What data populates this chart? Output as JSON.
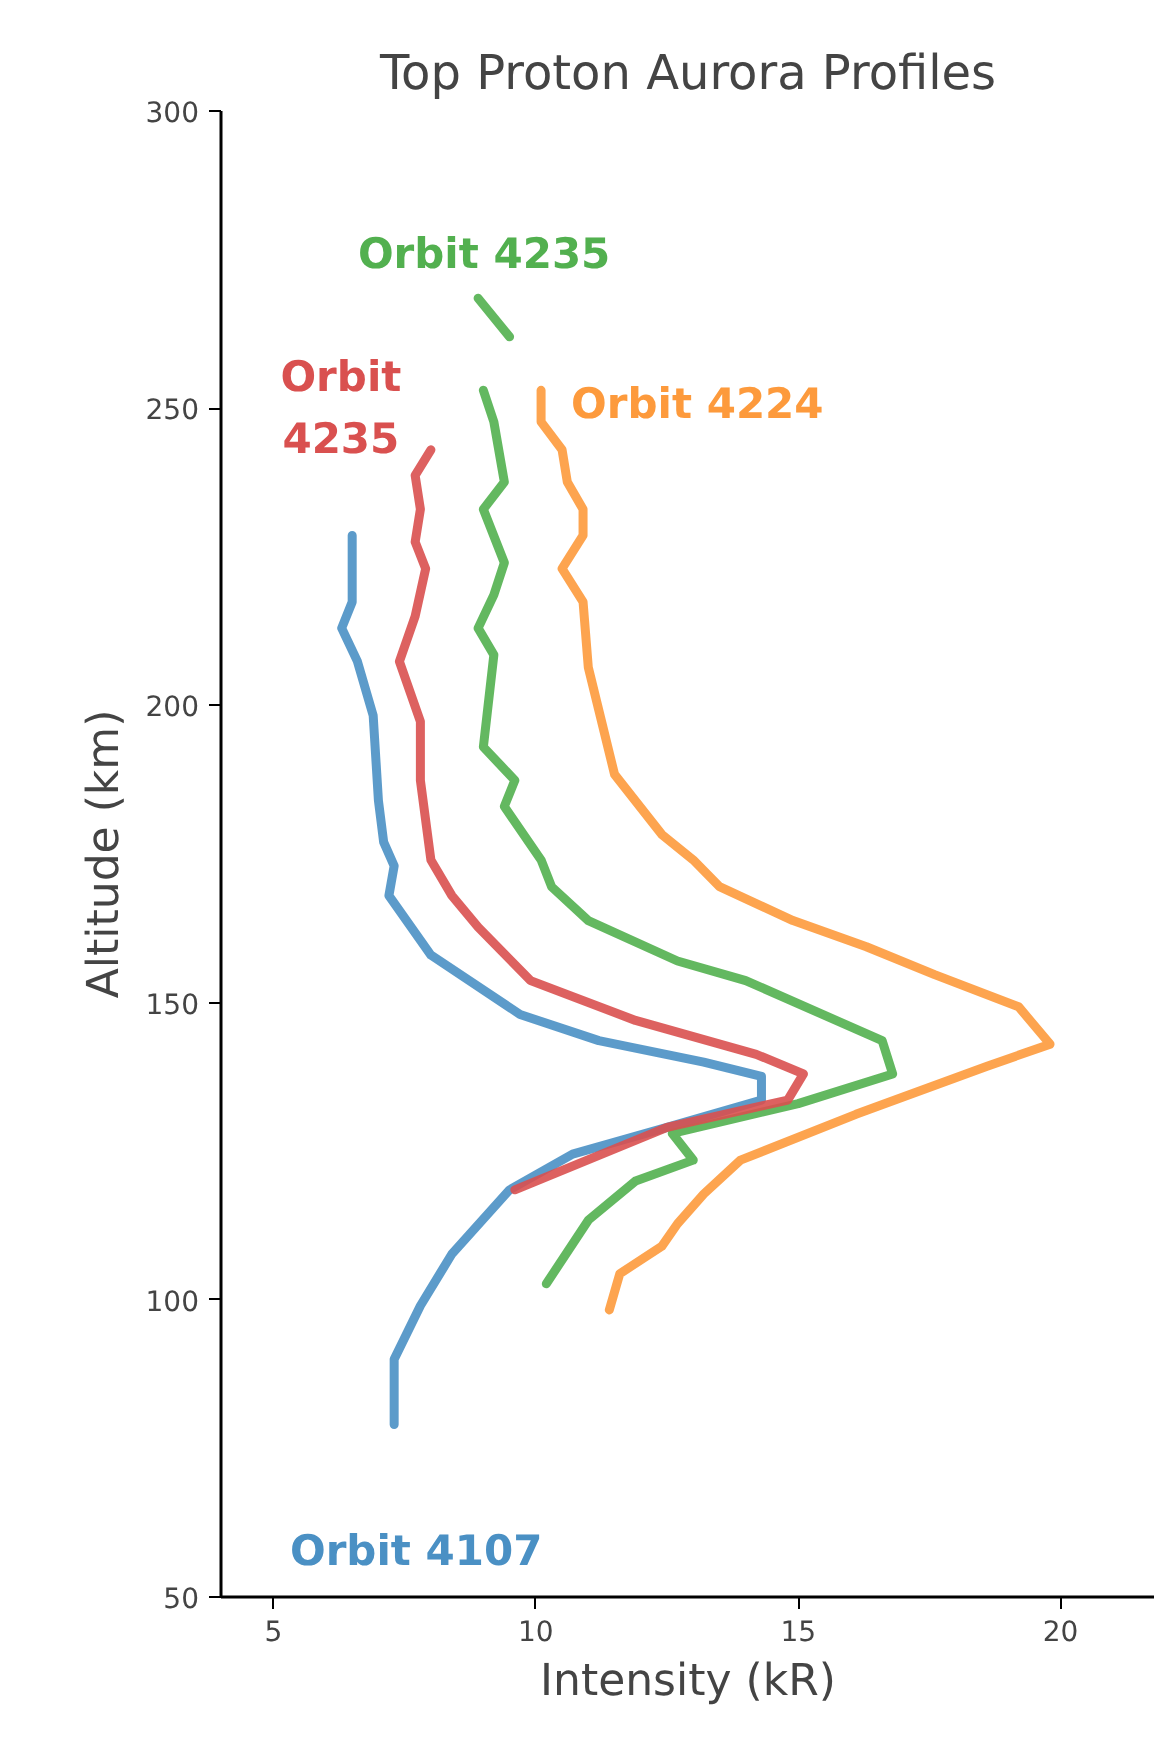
{
  "chart_data": {
    "type": "line",
    "title": "Top Proton Aurora Profiles",
    "xlabel": "Intensity (kR)",
    "ylabel": "Altitude (km)",
    "xlim": [
      4,
      21.8
    ],
    "ylim": [
      50,
      300
    ],
    "xticks": [
      5,
      10,
      15,
      20
    ],
    "yticks": [
      50,
      100,
      150,
      200,
      250,
      300
    ],
    "grid": false,
    "marker": "none",
    "line_style": "solid",
    "series": [
      {
        "name": "Orbit 4107",
        "color": "#4a90c4",
        "x": [
          6.5,
          6.5,
          6.3,
          6.6,
          6.9,
          7.0,
          7.1,
          7.3,
          7.2,
          8.0,
          9.7,
          11.2,
          13.2,
          14.3,
          14.3,
          12.5,
          10.7,
          9.5,
          8.4,
          7.8,
          7.3,
          7.3
        ],
        "values": [
          228.6,
          217.4,
          213,
          207.4,
          198.3,
          184,
          177,
          173,
          168,
          158,
          148,
          143.6,
          140,
          137.6,
          133.6,
          129,
          124.5,
          118.5,
          107.7,
          99,
          90,
          79
        ]
      },
      {
        "name": "Orbit 4224",
        "color": "#fd9a3c",
        "x": [
          10.1,
          10.1,
          10.5,
          10.6,
          10.9,
          10.9,
          10.5,
          10.9,
          11.0,
          11.5,
          12.4,
          13.0,
          13.5,
          14.9,
          16.3,
          17.6,
          19.2,
          19.8,
          18.6,
          16.1,
          13.9,
          13.2,
          12.7,
          12.4,
          11.6,
          11.4
        ],
        "values": [
          253,
          247.7,
          243,
          237.6,
          233,
          228.6,
          223,
          217.4,
          206.4,
          188.4,
          178.3,
          174,
          169.5,
          163.8,
          159.4,
          154.7,
          149.3,
          143,
          139.3,
          131.2,
          123.5,
          117.8,
          112.8,
          109,
          104.4,
          98.3
        ]
      },
      {
        "name": "Orbit 4235",
        "color": "#52b04f",
        "x": [
          8.9,
          9.5,
          null,
          9.0,
          9.2,
          9.4,
          9.0,
          9.4,
          9.2,
          8.9,
          9.2,
          9.0,
          9.6,
          9.4,
          10.1,
          10.3,
          11.0,
          12.7,
          14.0,
          16.6,
          16.8,
          15.0,
          12.6,
          13.0,
          11.9,
          11.0,
          10.2
        ],
        "values": [
          268.5,
          262,
          null,
          253,
          247.7,
          237.6,
          233,
          224,
          218.6,
          213,
          208.5,
          193,
          187.4,
          183,
          174,
          169.5,
          163.8,
          157,
          153.7,
          143.6,
          138,
          133,
          128,
          123.5,
          120,
          113.4,
          102.7
        ]
      },
      {
        "name": "Orbit 4235",
        "color": "#d9504f",
        "x": [
          8.0,
          7.7,
          7.8,
          7.7,
          7.9,
          7.7,
          7.4,
          7.8,
          7.8,
          8.0,
          8.4,
          8.9,
          9.9,
          11.9,
          14.2,
          15.1,
          14.8,
          12.5,
          9.6
        ],
        "values": [
          243,
          238.7,
          233,
          227.5,
          223,
          215,
          207.4,
          197.3,
          187.4,
          174,
          168,
          162.7,
          153.7,
          147,
          141.3,
          138,
          133.6,
          129,
          118.5
        ]
      }
    ]
  }
}
